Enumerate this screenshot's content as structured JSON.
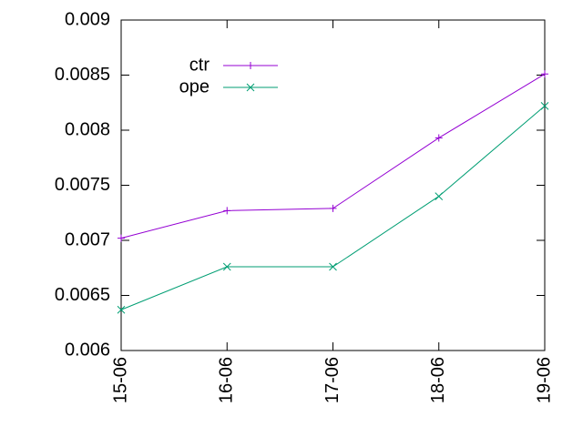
{
  "chart_data": {
    "type": "line",
    "categories": [
      "15-06",
      "16-06",
      "17-06",
      "18-06",
      "19-06"
    ],
    "series": [
      {
        "name": "ctr",
        "color": "#9400d3",
        "marker": "plus",
        "values": [
          0.00702,
          0.00727,
          0.00729,
          0.00793,
          0.00851
        ]
      },
      {
        "name": "ope",
        "color": "#009e73",
        "marker": "cross",
        "values": [
          0.00637,
          0.00676,
          0.00676,
          0.0074,
          0.00822
        ]
      }
    ],
    "ylim": [
      0.006,
      0.009
    ],
    "yticks": [
      0.006,
      0.0065,
      0.007,
      0.0075,
      0.008,
      0.0085,
      0.009
    ],
    "grid": false,
    "legend": "top-left"
  }
}
